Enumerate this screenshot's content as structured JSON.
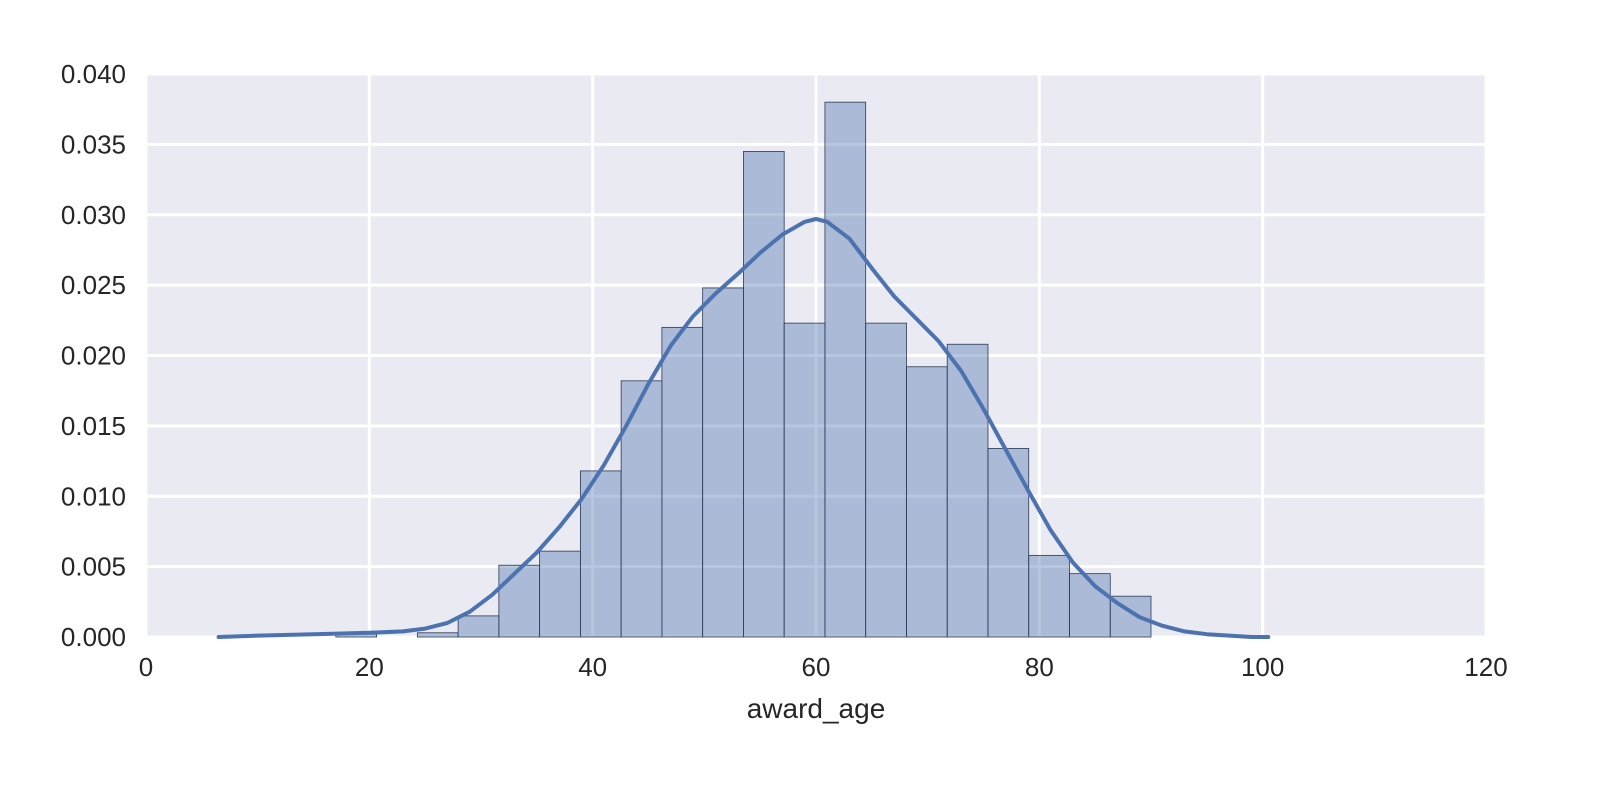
{
  "chart_data": {
    "type": "bar",
    "title": "",
    "xlabel": "award_age",
    "ylabel": "",
    "xlim": [
      0,
      120
    ],
    "ylim": [
      0,
      0.04
    ],
    "xticks": [
      0,
      20,
      40,
      60,
      80,
      100,
      120
    ],
    "xtick_labels": [
      "0",
      "20",
      "40",
      "60",
      "80",
      "100",
      "120"
    ],
    "yticks": [
      0,
      0.005,
      0.01,
      0.015,
      0.02,
      0.025,
      0.03,
      0.035,
      0.04
    ],
    "ytick_labels": [
      "0.000",
      "0.005",
      "0.010",
      "0.015",
      "0.020",
      "0.025",
      "0.030",
      "0.035",
      "0.040"
    ],
    "grid": true,
    "histogram": {
      "bin_edges": [
        17.0,
        20.65,
        24.3,
        27.95,
        31.6,
        35.25,
        38.9,
        42.55,
        46.2,
        49.85,
        53.5,
        57.15,
        60.8,
        64.45,
        68.1,
        71.75,
        75.4,
        79.05,
        82.7,
        86.35,
        90.0
      ],
      "values": [
        0.0002,
        0.0,
        0.0003,
        0.0015,
        0.0051,
        0.0061,
        0.0118,
        0.0182,
        0.022,
        0.0248,
        0.0345,
        0.0223,
        0.038,
        0.0223,
        0.0192,
        0.0208,
        0.0134,
        0.0058,
        0.0045,
        0.0029
      ],
      "color": "#4c72b0"
    },
    "kde": {
      "x": [
        6.5,
        10,
        15,
        20,
        23,
        25,
        27,
        29,
        31,
        33,
        35,
        37,
        39,
        41,
        43,
        45,
        47,
        49,
        51,
        53,
        55,
        57,
        59,
        60,
        61,
        63,
        65,
        67,
        69,
        71,
        73,
        75,
        77,
        79,
        81,
        83,
        85,
        87,
        89,
        91,
        93,
        95,
        97,
        99,
        100.5
      ],
      "y": [
        0.0,
        0.0001,
        0.0002,
        0.0003,
        0.0004,
        0.0006,
        0.001,
        0.0018,
        0.003,
        0.0045,
        0.006,
        0.0078,
        0.0098,
        0.0122,
        0.015,
        0.018,
        0.0207,
        0.0228,
        0.0244,
        0.0258,
        0.0273,
        0.0286,
        0.0295,
        0.0297,
        0.0295,
        0.0283,
        0.0262,
        0.0242,
        0.0226,
        0.021,
        0.0189,
        0.0162,
        0.0133,
        0.0104,
        0.0076,
        0.0053,
        0.0036,
        0.0024,
        0.0014,
        0.0008,
        0.0004,
        0.0002,
        0.0001,
        0.0,
        0.0
      ],
      "color": "#4c72b0"
    },
    "colors": {
      "plot_background": "#eaeaf2",
      "grid": "#ffffff",
      "bar_fill": "#4c72b0",
      "bar_edge": "#2b3a55",
      "kde_line": "#4c72b0"
    }
  }
}
